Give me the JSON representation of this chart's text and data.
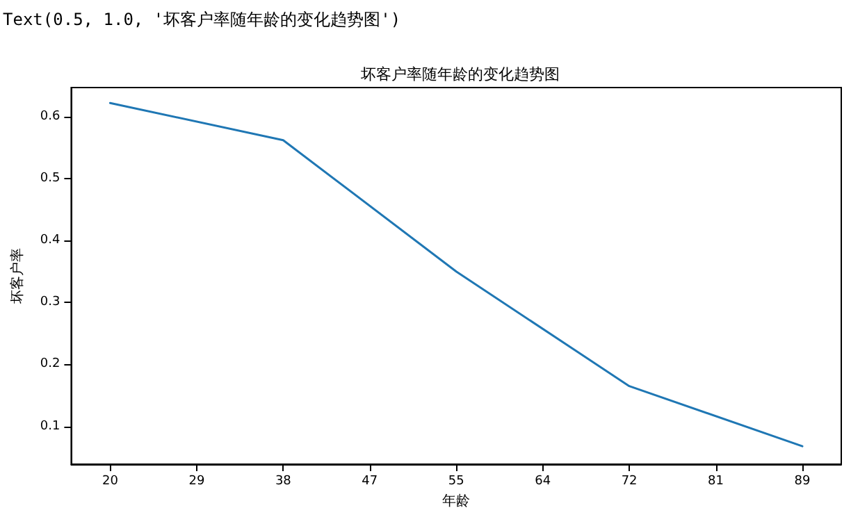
{
  "chart_data": {
    "type": "line",
    "title": "坏客户率随年龄的变化趋势图",
    "xlabel": "年龄",
    "ylabel": "坏客户率",
    "annotations": [
      "Text(0.5, 1.0, '坏客户率随年龄的变化趋势图')"
    ],
    "categories": [
      "20",
      "29",
      "38",
      "47",
      "55",
      "64",
      "72",
      "81",
      "89"
    ],
    "series": [
      {
        "color": "#1f77b4",
        "x": [
          "20",
          "38",
          "55",
          "72",
          "89"
        ],
        "values": [
          0.622,
          0.562,
          0.35,
          0.165,
          0.068
        ]
      }
    ],
    "ylim": [
      0.039,
      0.647
    ],
    "yticks": [
      0.1,
      0.2,
      0.3,
      0.4,
      0.5,
      0.6
    ],
    "grid": false,
    "marker": "none",
    "line_style": "solid"
  }
}
